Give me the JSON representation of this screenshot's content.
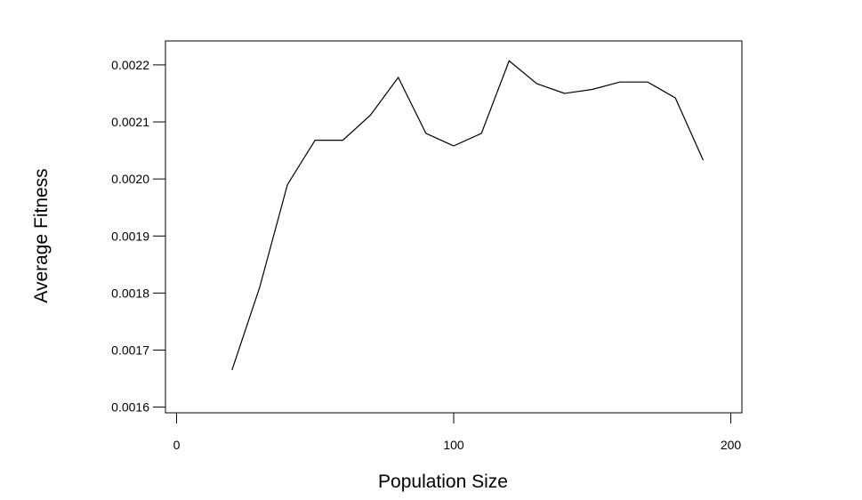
{
  "chart_data": {
    "type": "line",
    "title": "",
    "xlabel": "Population Size",
    "ylabel": "Average Fitness",
    "xlim": [
      -4,
      204
    ],
    "ylim": [
      0.00159,
      0.002242
    ],
    "xticks": [
      0,
      100,
      200
    ],
    "xtick_labels": [
      "0",
      "100",
      "200"
    ],
    "yticks": [
      0.0016,
      0.0017,
      0.0018,
      0.0019,
      0.002,
      0.0021,
      0.0022
    ],
    "ytick_labels": [
      "0.0016",
      "0.0017",
      "0.0018",
      "0.0019",
      "0.0020",
      "0.0021",
      "0.0022"
    ],
    "grid": false,
    "legend": "none",
    "line_color": "#000000",
    "series": [
      {
        "x": [
          20,
          30,
          40,
          50,
          60,
          70,
          80,
          90,
          100,
          110,
          120,
          130,
          140,
          150,
          160,
          170,
          180,
          190
        ],
        "values": [
          0.001665,
          0.00181,
          0.00199,
          0.002068,
          0.002068,
          0.002112,
          0.002178,
          0.00208,
          0.002058,
          0.00208,
          0.002207,
          0.002167,
          0.00215,
          0.002157,
          0.00217,
          0.00217,
          0.002142,
          0.002033
        ]
      }
    ]
  }
}
